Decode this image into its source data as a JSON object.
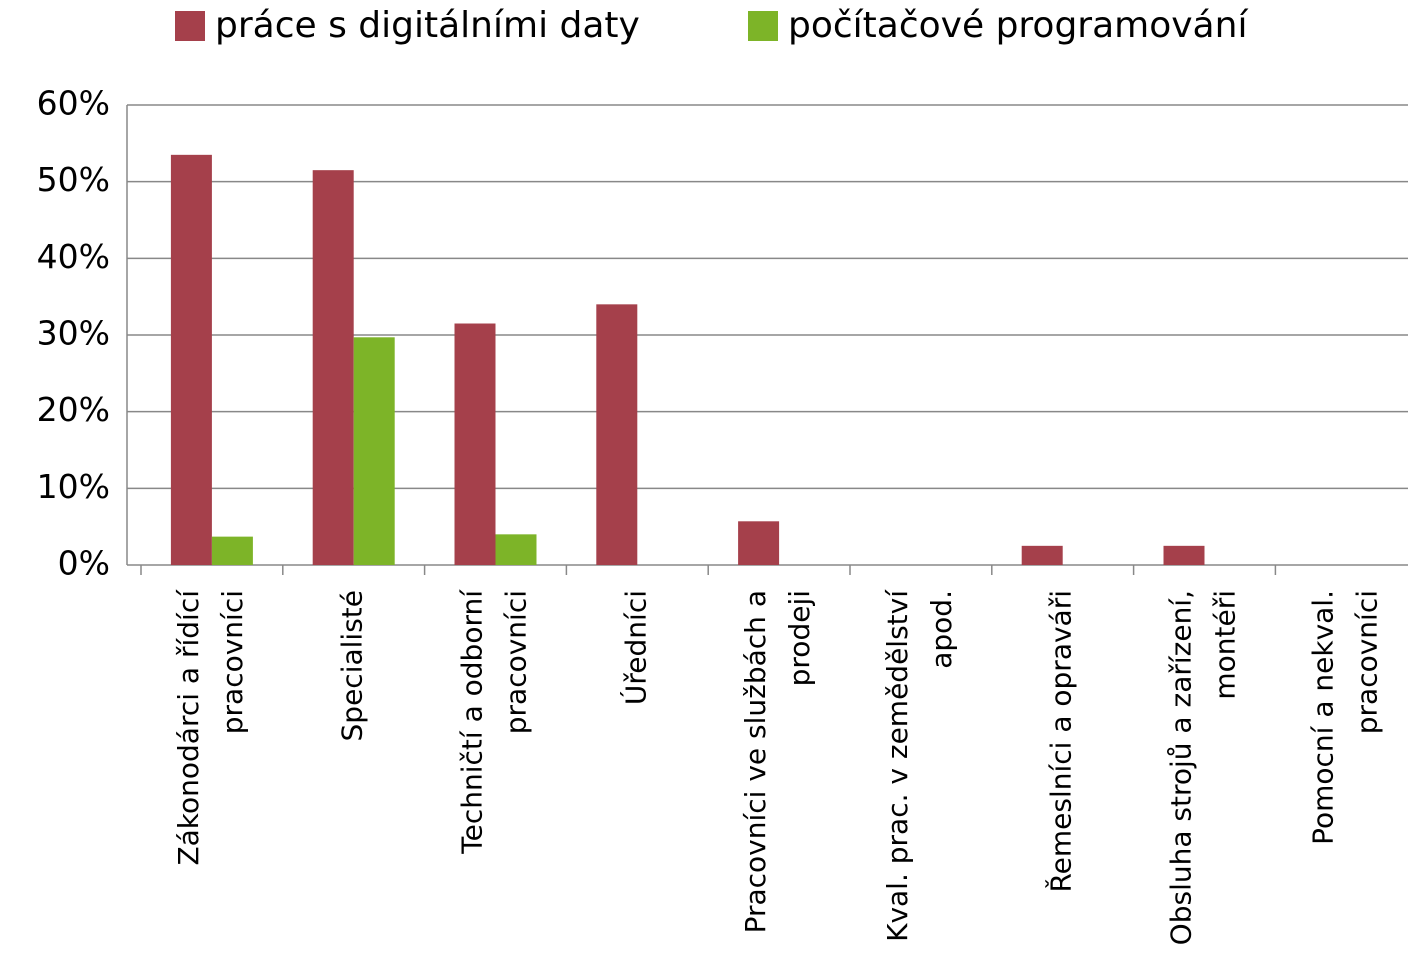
{
  "chart_data": {
    "type": "bar",
    "categories": [
      "Zákonodárci a řídící\npracovníci",
      "Specialisté",
      "Techničtí a odborní\npracovníci",
      "Úředníci",
      "Pracovníci ve službách a\nprodeji",
      "Kval. prac. v zemědělství\napod.",
      "Řemeslníci a opraváři",
      "Obsluha strojů a zařízení,\nmontéři",
      "Pomocní a nekval.\npracovníci"
    ],
    "series": [
      {
        "name": "práce s digitálními daty",
        "color": "#a5404b",
        "values": [
          53.5,
          51.5,
          31.5,
          34,
          5.7,
          0,
          2.5,
          2.5,
          0
        ]
      },
      {
        "name": "počítačové programování",
        "color": "#7db428",
        "values": [
          3.7,
          29.7,
          4,
          0,
          0,
          0,
          0,
          0,
          0
        ]
      }
    ],
    "ylim": [
      0,
      60
    ],
    "yticks": [
      {
        "value": 0,
        "label": "0%"
      },
      {
        "value": 10,
        "label": "10%"
      },
      {
        "value": 20,
        "label": "20%"
      },
      {
        "value": 30,
        "label": "30%"
      },
      {
        "value": 40,
        "label": "40%"
      },
      {
        "value": 50,
        "label": "50%"
      },
      {
        "value": 60,
        "label": "60%"
      }
    ],
    "grid": true,
    "legend": "top"
  }
}
